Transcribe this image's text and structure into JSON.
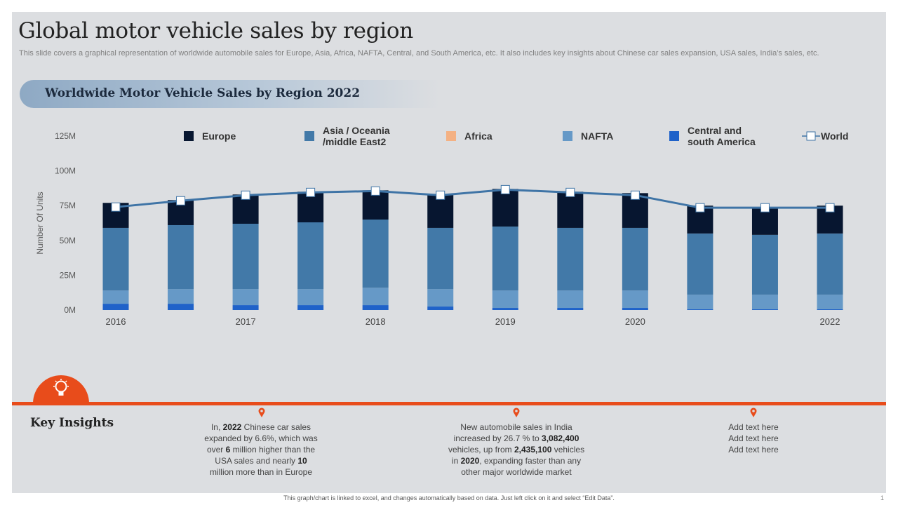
{
  "slide": {
    "title": "Global motor vehicle sales by region",
    "subtitle": "This slide covers a graphical representation of worldwide automobile sales for Europe, Asia, Africa, NAFTA,  Central, and South America, etc. It also includes key insights about Chinese car sales expansion, USA sales, India’s sales, etc.",
    "banner": "Worldwide Motor Vehicle Sales by Region 2022"
  },
  "chart_data": {
    "type": "bar",
    "stacked": true,
    "title": "Worldwide Motor Vehicle Sales by Region 2022",
    "ylabel": "Number Of Units",
    "xlabel": "",
    "ylim": [
      0,
      125
    ],
    "yticks": [
      0,
      25,
      50,
      75,
      100,
      125
    ],
    "ytick_labels": [
      "0M",
      "25M",
      "50M",
      "75M",
      "100M",
      "125M"
    ],
    "x_tick_labels": [
      "2016",
      "",
      "2017",
      "",
      "2018",
      "",
      "2019",
      "",
      "2020",
      "",
      "",
      "2022"
    ],
    "categories": [
      "2016",
      "2016.5",
      "2017",
      "2017.5",
      "2018",
      "2018.5",
      "2019",
      "2019.5",
      "2020",
      "2020.5",
      "2021",
      "2022"
    ],
    "series": [
      {
        "name": "Central and south America",
        "color": "#1f62c9",
        "values": [
          4.5,
          4.5,
          3.5,
          3.5,
          3.5,
          2.5,
          1.5,
          1.5,
          1.5,
          0.5,
          0.5,
          0.5
        ]
      },
      {
        "name": "NAFTA",
        "color": "#6699c7",
        "values": [
          9.5,
          10.5,
          11.5,
          11.5,
          12.5,
          12.5,
          12.5,
          12.5,
          12.5,
          10.5,
          10.5,
          10.5
        ]
      },
      {
        "name": "Africa",
        "color": "#f4b183",
        "values": [
          0,
          0,
          0,
          0,
          0,
          0,
          0,
          0,
          0,
          0,
          0,
          0
        ]
      },
      {
        "name": "Asia / Oceania /middle East2",
        "color": "#4279a8",
        "values": [
          45,
          46,
          47,
          48,
          49,
          44,
          46,
          45,
          45,
          44,
          43,
          44
        ]
      },
      {
        "name": "Europe",
        "color": "#071630",
        "values": [
          18,
          18,
          21,
          22,
          21,
          24,
          27,
          26,
          25,
          20,
          20,
          20
        ]
      }
    ],
    "line_series": {
      "name": "World",
      "color": "#3f74a6",
      "values": [
        74,
        78.5,
        82.5,
        84.5,
        85.5,
        82.5,
        86.5,
        84.5,
        82.5,
        73.5,
        73.5,
        73.5
      ]
    },
    "legend": {
      "position": "top",
      "entries": [
        {
          "label": "Europe",
          "color": "#071630",
          "type": "square"
        },
        {
          "label": "Asia / Oceania",
          "label2": "/middle East2",
          "color": "#4279a8",
          "type": "square"
        },
        {
          "label": "Africa",
          "color": "#f4b183",
          "type": "square"
        },
        {
          "label": "NAFTA",
          "color": "#6699c7",
          "type": "square"
        },
        {
          "label": "Central and",
          "label2": "south  America",
          "color": "#1f62c9",
          "type": "square"
        },
        {
          "label": "World",
          "color": "#3f74a6",
          "type": "line"
        }
      ]
    }
  },
  "insights": {
    "title": "Key Insights",
    "accent_color": "#e84c1b",
    "items": [
      {
        "html": "In, <b>2022</b> Chinese  car sales<br>expanded  by 6.6%, which was<br>over <b>6</b> million higher than the<br>USA sales and nearly <b>10</b><br>million more than in Europe"
      },
      {
        "html": "New automobile  sales in India<br>increased by 26.7 % to <b>3,082,400</b><br>vehicles,  up from <b>2,435,100</b> vehicles<br>in <b>2020</b>,  expanding faster than any<br>other major worldwide  market"
      },
      {
        "html": "Add text here<br>Add text here<br>Add text here"
      }
    ]
  },
  "footer": {
    "note": "This graph/chart is linked to excel, and changes automatically based on data. Just left click on it and select “Edit Data”.",
    "page_number": "1"
  }
}
